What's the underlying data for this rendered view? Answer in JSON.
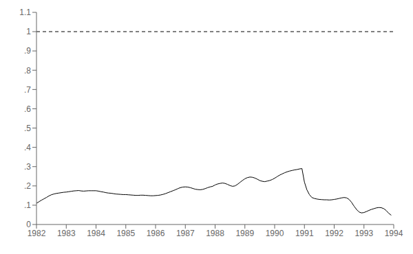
{
  "chart_data": {
    "type": "line",
    "title": "",
    "xlim": [
      1982,
      1994
    ],
    "ylim": [
      0,
      1.1
    ],
    "xticks": [
      1982,
      1983,
      1984,
      1985,
      1986,
      1987,
      1988,
      1989,
      1990,
      1991,
      1992,
      1993,
      1994
    ],
    "yticks": [
      0,
      {
        "value": 0.1,
        "label": ".1"
      },
      {
        "value": 0.2,
        "label": ".2"
      },
      {
        "value": 0.3,
        "label": ".3"
      },
      {
        "value": 0.4,
        "label": ".4"
      },
      {
        "value": 0.5,
        "label": ".5"
      },
      {
        "value": 0.6,
        "label": ".6"
      },
      {
        "value": 0.7,
        "label": ".7"
      },
      {
        "value": 0.8,
        "label": ".8"
      },
      {
        "value": 0.9,
        "label": ".9"
      },
      1,
      1.1
    ],
    "grid": false,
    "color": "#000000",
    "line_style": "solid",
    "hline": {
      "value": 1.0,
      "color": "#000000",
      "line_style": "dashed"
    },
    "x": [
      1982.0,
      1982.083,
      1982.167,
      1982.25,
      1982.333,
      1982.417,
      1982.5,
      1982.583,
      1982.667,
      1982.75,
      1982.833,
      1982.917,
      1983.0,
      1983.083,
      1983.167,
      1983.25,
      1983.333,
      1983.417,
      1983.5,
      1983.583,
      1983.667,
      1983.75,
      1983.833,
      1983.917,
      1984.0,
      1984.083,
      1984.167,
      1984.25,
      1984.333,
      1984.417,
      1984.5,
      1984.583,
      1984.667,
      1984.75,
      1984.833,
      1984.917,
      1985.0,
      1985.083,
      1985.167,
      1985.25,
      1985.333,
      1985.417,
      1985.5,
      1985.583,
      1985.667,
      1985.75,
      1985.833,
      1985.917,
      1986.0,
      1986.083,
      1986.167,
      1986.25,
      1986.333,
      1986.417,
      1986.5,
      1986.583,
      1986.667,
      1986.75,
      1986.833,
      1986.917,
      1987.0,
      1987.083,
      1987.167,
      1987.25,
      1987.333,
      1987.417,
      1987.5,
      1987.583,
      1987.667,
      1987.75,
      1987.833,
      1987.917,
      1988.0,
      1988.083,
      1988.167,
      1988.25,
      1988.333,
      1988.417,
      1988.5,
      1988.583,
      1988.667,
      1988.75,
      1988.833,
      1988.917,
      1989.0,
      1989.083,
      1989.167,
      1989.25,
      1989.333,
      1989.417,
      1989.5,
      1989.583,
      1989.667,
      1989.75,
      1989.833,
      1989.917,
      1990.0,
      1990.083,
      1990.167,
      1990.25,
      1990.333,
      1990.417,
      1990.5,
      1990.583,
      1990.667,
      1990.75,
      1990.833,
      1990.917,
      1991.0,
      1991.083,
      1991.167,
      1991.25,
      1991.333,
      1991.417,
      1991.5,
      1991.583,
      1991.667,
      1991.75,
      1991.833,
      1991.917,
      1992.0,
      1992.083,
      1992.167,
      1992.25,
      1992.333,
      1992.417,
      1992.5,
      1992.583,
      1992.667,
      1992.75,
      1992.833,
      1992.917,
      1993.0,
      1993.083,
      1993.167,
      1993.25,
      1993.333,
      1993.417,
      1993.5,
      1993.583,
      1993.667,
      1993.75,
      1993.833,
      1993.917
    ],
    "values": [
      0.11,
      0.118,
      0.126,
      0.133,
      0.14,
      0.148,
      0.154,
      0.158,
      0.161,
      0.163,
      0.165,
      0.167,
      0.168,
      0.17,
      0.172,
      0.174,
      0.175,
      0.176,
      0.174,
      0.173,
      0.174,
      0.175,
      0.175,
      0.175,
      0.175,
      0.173,
      0.17,
      0.168,
      0.165,
      0.163,
      0.162,
      0.16,
      0.158,
      0.157,
      0.156,
      0.155,
      0.155,
      0.154,
      0.153,
      0.152,
      0.151,
      0.151,
      0.152,
      0.152,
      0.151,
      0.15,
      0.149,
      0.149,
      0.15,
      0.151,
      0.153,
      0.156,
      0.16,
      0.165,
      0.17,
      0.175,
      0.18,
      0.186,
      0.191,
      0.194,
      0.195,
      0.194,
      0.191,
      0.187,
      0.183,
      0.181,
      0.18,
      0.182,
      0.186,
      0.191,
      0.195,
      0.198,
      0.205,
      0.21,
      0.213,
      0.215,
      0.213,
      0.208,
      0.202,
      0.198,
      0.2,
      0.208,
      0.218,
      0.228,
      0.237,
      0.243,
      0.246,
      0.245,
      0.241,
      0.235,
      0.228,
      0.224,
      0.222,
      0.225,
      0.228,
      0.233,
      0.24,
      0.248,
      0.256,
      0.262,
      0.268,
      0.273,
      0.277,
      0.28,
      0.283,
      0.285,
      0.288,
      0.29,
      0.22,
      0.18,
      0.155,
      0.14,
      0.135,
      0.132,
      0.13,
      0.129,
      0.128,
      0.128,
      0.127,
      0.128,
      0.13,
      0.132,
      0.135,
      0.138,
      0.14,
      0.138,
      0.13,
      0.115,
      0.095,
      0.078,
      0.065,
      0.06,
      0.062,
      0.067,
      0.073,
      0.078,
      0.082,
      0.086,
      0.088,
      0.087,
      0.082,
      0.072,
      0.058,
      0.048
    ]
  }
}
